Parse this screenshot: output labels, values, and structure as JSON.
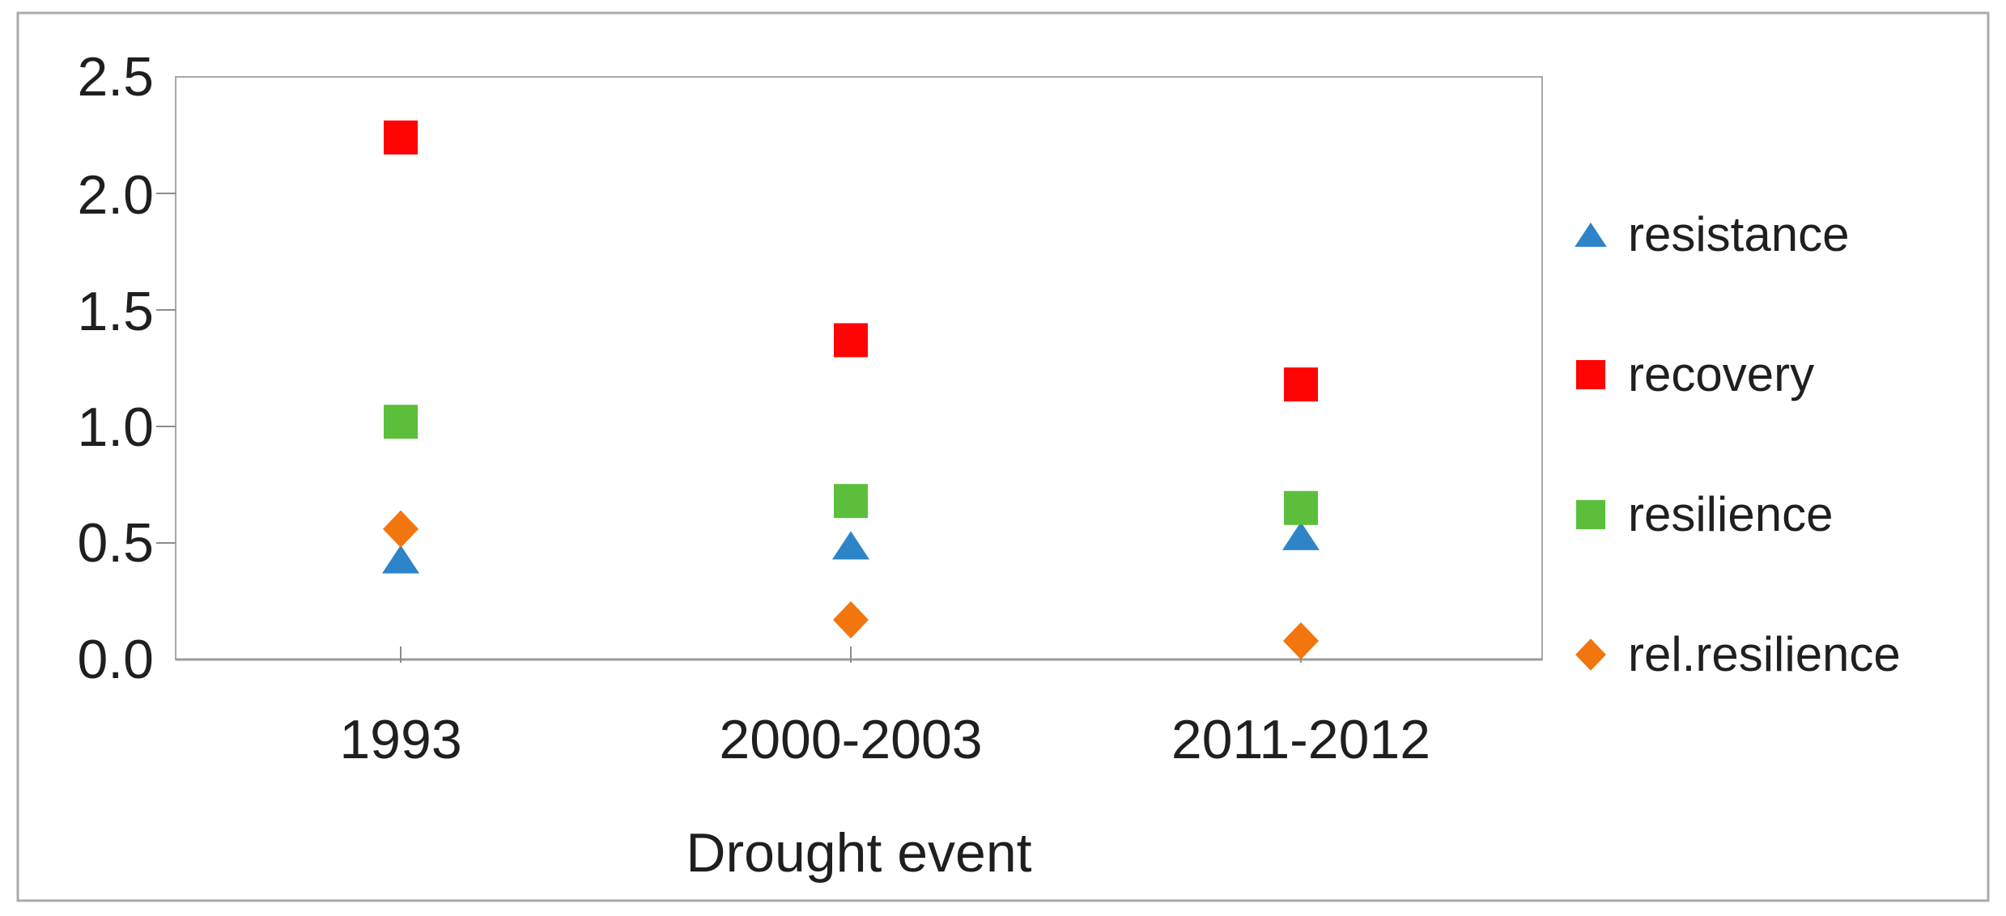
{
  "chart_data": {
    "type": "scatter",
    "title": "",
    "xlabel": "Drought event",
    "ylabel": "",
    "categories": [
      "1993",
      "2000-2003",
      "2011-2012"
    ],
    "series": [
      {
        "name": "resistance",
        "marker": "triangle",
        "color": "#2E84C8",
        "values": [
          0.43,
          0.49,
          0.53
        ]
      },
      {
        "name": "recovery",
        "marker": "square",
        "color": "#FE0404",
        "values": [
          2.24,
          1.37,
          1.18
        ]
      },
      {
        "name": "resilience",
        "marker": "square",
        "color": "#5CBF3C",
        "values": [
          1.02,
          0.68,
          0.65
        ]
      },
      {
        "name": "rel.resilience",
        "marker": "diamond",
        "color": "#F2750D",
        "values": [
          0.56,
          0.17,
          0.08
        ]
      }
    ],
    "y_ticks": [
      "2.5",
      "2.0",
      "1.5",
      "1.0",
      "0.5",
      "0.0"
    ],
    "ylim": [
      0,
      2.5
    ],
    "grid": false,
    "legend_position": "right",
    "colors": {
      "outer_border": "#ABABAB",
      "plot_border": "#A8A8A8",
      "axis_line": "#9B9B9B",
      "tick_line": "#8C8C8C",
      "text": "#1F1F1F",
      "background": "#FFFFFF"
    }
  }
}
